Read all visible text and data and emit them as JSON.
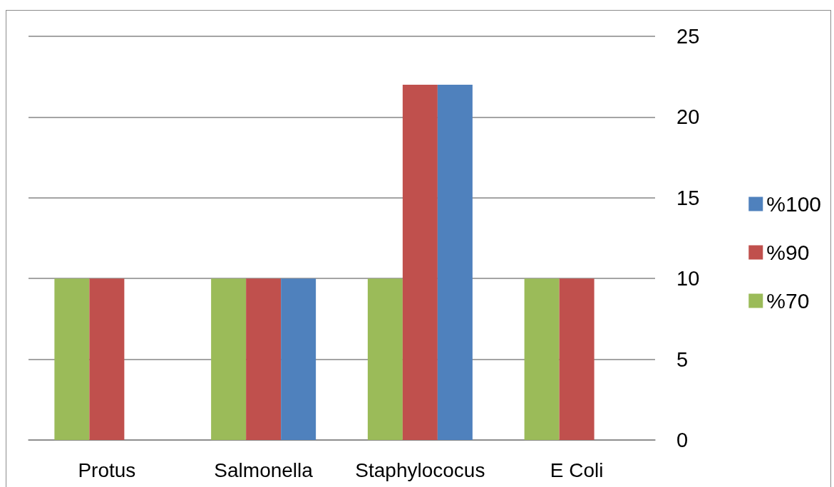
{
  "chart_data": {
    "type": "bar",
    "categories": [
      "Protus",
      "Salmonella",
      "Staphylococus",
      "E Coli"
    ],
    "series": [
      {
        "name": "%70",
        "color": "#9bbb59",
        "values": [
          10,
          10,
          10,
          10
        ]
      },
      {
        "name": "%90",
        "color": "#c0504d",
        "values": [
          10,
          10,
          22,
          10
        ]
      },
      {
        "name": "%100",
        "color": "#4f81bd",
        "values": [
          null,
          10,
          22,
          null
        ]
      }
    ],
    "ylim": [
      0,
      25
    ],
    "yticks": [
      0,
      5,
      10,
      15,
      20,
      25
    ],
    "grid": "y",
    "legend": "right"
  }
}
